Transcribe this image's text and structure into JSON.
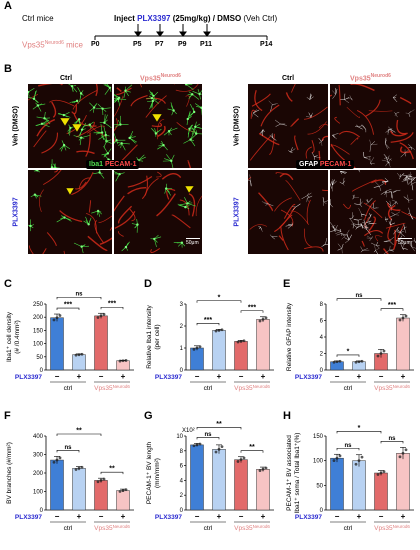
{
  "panelA": {
    "label": "A",
    "group1": "Ctrl mice",
    "group2": "Vps35",
    "group2_sup": "Neurod6",
    "group2_suffix": " mice",
    "inject_prefix": "Inject ",
    "drug": "PLX3397",
    "inject_dose": " (25mg/kg) / DMSO ",
    "inject_veh": "(Veh Ctrl)",
    "timepoints": [
      "P0",
      "P5",
      "P7",
      "P9",
      "P11",
      "P14"
    ]
  },
  "panelB": {
    "label": "B",
    "col_ctrl": "Ctrl",
    "col_mut": "Vps35",
    "col_mut_sup": "Neurod6",
    "row_veh": "Veh (DMSO)",
    "row_plx": "PLX3397",
    "legend_left_a": "Iba1",
    "legend_left_b": "PECAM-1",
    "legend_right_a": "GFAP",
    "legend_right_b": "PECAM-1",
    "scalebar": "50μm"
  },
  "colors": {
    "drug": "#2a2ad0",
    "mutant": "#e08080",
    "ctrl_bar": "#3f7fd6",
    "ctrl_plx_bar": "#b8d2f2",
    "mut_bar": "#e26a6a",
    "mut_plx_bar": "#f7c4c4"
  },
  "x_common": {
    "row_label": "PLX3397",
    "minus": "−",
    "plus": "+",
    "group_ctrl": "ctrl",
    "group_mut": "Vps35",
    "group_mut_sup": "Neurod6"
  },
  "chart_data": [
    {
      "panel": "C",
      "type": "bar",
      "ylabel": "Iba1⁺ cell density",
      "ylabel2": "(# /0.4mm²)",
      "yticks": [
        "0",
        "50",
        "100",
        "150",
        "200",
        "250"
      ],
      "ylim": [
        0,
        250
      ],
      "values": [
        198,
        58,
        205,
        35
      ],
      "errors": [
        14,
        3,
        10,
        2
      ],
      "sig": [
        "***",
        "***",
        "ns"
      ]
    },
    {
      "panel": "D",
      "type": "bar",
      "ylabel": "Relative Iba1 intensity",
      "ylabel2": "(per cell)",
      "yticks": [
        "0",
        "1",
        "2",
        "3"
      ],
      "ylim": [
        0,
        3
      ],
      "values": [
        1.0,
        1.8,
        1.3,
        2.3
      ],
      "errors": [
        0.1,
        0.05,
        0.05,
        0.12
      ],
      "sig": [
        "***",
        "***",
        "*"
      ]
    },
    {
      "panel": "E",
      "type": "bar",
      "ylabel": "Relative GFAP intensity",
      "ylabel2": "",
      "yticks": [
        "0",
        "2",
        "4",
        "6",
        "8"
      ],
      "ylim": [
        0,
        8
      ],
      "values": [
        1.0,
        1.0,
        2.0,
        6.3
      ],
      "errors": [
        0.1,
        0.1,
        0.5,
        0.4
      ],
      "sig": [
        "*",
        "***",
        "ns"
      ]
    },
    {
      "panel": "F",
      "type": "bar",
      "ylabel": "BV branches (#/mm²)",
      "ylabel2": "",
      "yticks": [
        "0",
        "100",
        "200",
        "300",
        "400"
      ],
      "ylim": [
        0,
        400
      ],
      "values": [
        270,
        225,
        160,
        105
      ],
      "errors": [
        20,
        10,
        12,
        8
      ],
      "sig": [
        "ns",
        "**",
        "**"
      ]
    },
    {
      "panel": "G",
      "type": "bar",
      "ylabel": "PECAM-1⁺ BV length",
      "ylabel2": "(mm/mm²)",
      "multiplier": "X10²",
      "yticks": [
        "0",
        "2",
        "4",
        "6",
        "8",
        "10"
      ],
      "ylim": [
        0,
        10
      ],
      "values": [
        8.8,
        8.2,
        6.8,
        5.5
      ],
      "errors": [
        0.2,
        0.6,
        0.4,
        0.3
      ],
      "sig": [
        "ns",
        "**",
        "**"
      ]
    },
    {
      "panel": "H",
      "type": "bar",
      "ylabel": "PECAM-1⁺ BV associated",
      "ylabel2": "Iba1⁺ soma / Total Iba1⁺(%)",
      "yticks": [
        "0",
        "50",
        "100",
        "150"
      ],
      "ylim": [
        0,
        150
      ],
      "values": [
        105,
        100,
        75,
        115
      ],
      "errors": [
        8,
        12,
        5,
        12
      ],
      "sig": [
        "ns",
        "ns",
        "*"
      ]
    }
  ]
}
